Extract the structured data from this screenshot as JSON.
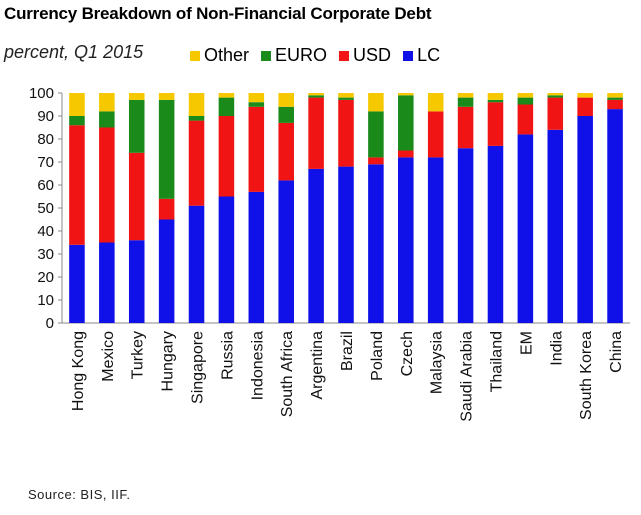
{
  "title": "Currency Breakdown of Non-Financial Corporate Debt",
  "subtitle": "percent, Q1 2015",
  "source": "Source: BIS, IIF.",
  "chart_data": {
    "type": "bar",
    "stacked": true,
    "categories": [
      "Hong Kong",
      "Mexico",
      "Turkey",
      "Hungary",
      "Singapore",
      "Russia",
      "Indonesia",
      "South Africa",
      "Argentina",
      "Brazil",
      "Poland",
      "Czech",
      "Malaysia",
      "Saudi Arabia",
      "Thailand",
      "EM",
      "India",
      "South Korea",
      "China"
    ],
    "series": [
      {
        "name": "LC",
        "color": "#1010e8",
        "values": [
          34,
          35,
          36,
          45,
          51,
          55,
          57,
          62,
          67,
          68,
          69,
          72,
          72,
          76,
          77,
          82,
          84,
          90,
          93
        ]
      },
      {
        "name": "USD",
        "color": "#f01414",
        "values": [
          52,
          50,
          38,
          9,
          37,
          35,
          37,
          25,
          31,
          29,
          3,
          3,
          20,
          18,
          19,
          13,
          14,
          8,
          4
        ]
      },
      {
        "name": "EURO",
        "color": "#1a8a1a",
        "values": [
          4,
          7,
          23,
          43,
          2,
          8,
          2,
          7,
          1,
          1,
          20,
          24,
          0,
          4,
          1,
          3,
          1,
          0,
          1
        ]
      },
      {
        "name": "Other",
        "color": "#f5c800",
        "values": [
          10,
          8,
          3,
          3,
          10,
          2,
          4,
          6,
          1,
          2,
          8,
          1,
          8,
          2,
          3,
          2,
          1,
          2,
          2
        ]
      }
    ],
    "legend": [
      "Other",
      "EURO",
      "USD",
      "LC"
    ],
    "legend_position": "top",
    "xlabel": "",
    "ylabel": "",
    "ylim": [
      0,
      100
    ],
    "yticks": [
      0,
      10,
      20,
      30,
      40,
      50,
      60,
      70,
      80,
      90,
      100
    ],
    "grid": false
  }
}
